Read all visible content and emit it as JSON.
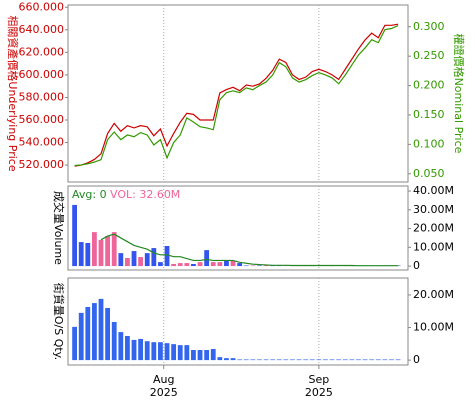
{
  "chart_data": [
    {
      "type": "line",
      "y_label": "相關資產價格Underlying Price",
      "y2_label": "權證價格Nominal Price",
      "xlim": [
        -1,
        50.5
      ],
      "xticks": [
        {
          "value": 13.5,
          "label": "Aug 2025"
        },
        {
          "value": 37,
          "label": "Sep 2025"
        }
      ],
      "ylim": [
        505,
        662
      ],
      "yticks": [
        {
          "value": 520,
          "label": "520.000"
        },
        {
          "value": 540,
          "label": "540.000"
        },
        {
          "value": 560,
          "label": "560.000"
        },
        {
          "value": 580,
          "label": "580.000"
        },
        {
          "value": 600,
          "label": "600.000"
        },
        {
          "value": 620,
          "label": "620.000"
        },
        {
          "value": 640,
          "label": "640.000"
        },
        {
          "value": 660,
          "label": "660.000"
        }
      ],
      "y2lim": [
        0.036,
        0.337
      ],
      "y2ticks": [
        {
          "value": 0.05,
          "label": "0.050"
        },
        {
          "value": 0.1,
          "label": "0.100"
        },
        {
          "value": 0.15,
          "label": "0.150"
        },
        {
          "value": 0.2,
          "label": "0.200"
        },
        {
          "value": 0.25,
          "label": "0.250"
        },
        {
          "value": 0.3,
          "label": "0.300"
        }
      ],
      "series": [
        {
          "name": "Underlying Price",
          "color": "#cc0000",
          "axis": "y",
          "values": [
            519,
            520,
            522,
            525,
            530,
            548,
            557,
            550,
            555,
            553,
            555,
            554,
            546,
            552,
            537,
            548,
            558,
            566,
            565,
            560,
            560,
            560,
            584,
            587,
            589,
            586,
            591,
            590,
            592,
            597,
            604,
            614,
            611,
            600,
            596,
            598,
            603,
            605,
            603,
            600,
            596,
            605,
            614,
            623,
            631,
            637,
            633,
            644,
            644,
            645
          ]
        },
        {
          "name": "Nominal Price",
          "color": "#339900",
          "axis": "y2",
          "values": [
            0.064,
            0.065,
            0.067,
            0.07,
            0.074,
            0.108,
            0.121,
            0.108,
            0.116,
            0.113,
            0.12,
            0.116,
            0.099,
            0.108,
            0.077,
            0.103,
            0.116,
            0.145,
            0.138,
            0.13,
            0.128,
            0.125,
            0.176,
            0.188,
            0.191,
            0.188,
            0.196,
            0.193,
            0.2,
            0.206,
            0.218,
            0.239,
            0.232,
            0.213,
            0.206,
            0.21,
            0.217,
            0.222,
            0.218,
            0.213,
            0.203,
            0.218,
            0.235,
            0.252,
            0.264,
            0.278,
            0.273,
            0.295,
            0.297,
            0.302
          ]
        }
      ]
    },
    {
      "type": "bar",
      "y_label": "成交量Volume",
      "annotations": [
        "Avg: 0",
        "VOL: 32.60M"
      ],
      "ylim": [
        -2100000,
        42700000
      ],
      "yticks": [
        0,
        {
          "value": 10000000,
          "label": "10.00M"
        },
        {
          "value": 20000000,
          "label": "20.00M"
        },
        {
          "value": 30000000,
          "label": "30.00M"
        },
        {
          "value": 40000000,
          "label": "40.00M"
        }
      ],
      "series": [
        {
          "name": "Volume",
          "kind": "bar",
          "colors": [
            "#3355ee",
            "#3355ee",
            "#3355ee",
            "#ee6699",
            "#ee6699",
            "#ee6699",
            "#ee6699",
            "#3355ee",
            "#ee6699",
            "#3355ee",
            "#ee6699",
            "#3355ee",
            "#3355ee",
            "#3355ee",
            "#3355ee",
            "#ee6699",
            "#ee6699",
            "#ee6699",
            "#3355ee",
            "#ee6699",
            "#3355ee",
            "#ee6699",
            "#ee6699",
            "#3355ee",
            "#ee6699",
            "#3355ee",
            "#3355ee",
            "#ee6699",
            "#3355ee",
            "#ee6699",
            "#3355ee",
            "#3355ee",
            "#ee6699",
            "#ee6699",
            "#3355ee",
            "#3355ee",
            "#3355ee",
            "#ee6699",
            "#ee6699",
            "#3355ee",
            "#ee6699",
            "#3355ee",
            "#3355ee",
            "#3355ee",
            "#3355ee",
            "#ee6699",
            "#3355ee",
            "#3355ee",
            "#ee6699",
            "#3355ee"
          ],
          "values": [
            32600000,
            12800000,
            12300000,
            18100000,
            13900000,
            16000000,
            18100000,
            6900000,
            4300000,
            8000000,
            4800000,
            6900000,
            9600000,
            2100000,
            10700000,
            1100000,
            1600000,
            1600000,
            1100000,
            2100000,
            8500000,
            2100000,
            2100000,
            2700000,
            2700000,
            1600000,
            300000,
            300000,
            300000,
            300000,
            300000,
            300000,
            300000,
            300000,
            300000,
            300000,
            300000,
            300000,
            300000,
            300000,
            300000,
            300000,
            300000,
            300000,
            300000,
            300000,
            300000,
            300000,
            300000,
            300000
          ]
        },
        {
          "name": "Avg",
          "kind": "line",
          "color": "#228822",
          "values": [
            null,
            null,
            null,
            null,
            14000000,
            16000000,
            17000000,
            15000000,
            13000000,
            11000000,
            10000000,
            9000000,
            7000000,
            6000000,
            6000000,
            5000000,
            5000000,
            4000000,
            3000000,
            3000000,
            3500000,
            3000000,
            3000000,
            3000000,
            3000000,
            2000000,
            1500000,
            1000000,
            800000,
            600000,
            400000,
            400000,
            400000,
            300000,
            300000,
            300000,
            300000,
            300000,
            300000,
            300000,
            300000,
            300000,
            300000,
            200000,
            200000,
            200000,
            200000,
            200000,
            200000,
            200000
          ]
        }
      ]
    },
    {
      "type": "bar",
      "y_label": "街貨量O/S Qty.",
      "ylim": [
        -1500000,
        25200000
      ],
      "yticks": [
        0,
        {
          "value": 10000000,
          "label": "10.00M"
        },
        {
          "value": 20000000,
          "label": "20.00M"
        }
      ],
      "series": [
        {
          "name": "O/S Qty.",
          "kind": "bar",
          "color": "#3366ee",
          "values": [
            10200000,
            14500000,
            16300000,
            17500000,
            18800000,
            16000000,
            11700000,
            8600000,
            7400000,
            6200000,
            6500000,
            5800000,
            5500000,
            5500000,
            5200000,
            4900000,
            4600000,
            4600000,
            3100000,
            3100000,
            3100000,
            3400000,
            900000,
            600000,
            600000,
            200000,
            200000,
            200000,
            200000,
            200000,
            200000,
            200000,
            200000,
            200000,
            200000,
            200000,
            200000,
            200000,
            200000,
            200000,
            200000,
            200000,
            200000,
            200000,
            200000,
            200000,
            200000,
            200000,
            200000,
            200000
          ]
        }
      ]
    }
  ]
}
